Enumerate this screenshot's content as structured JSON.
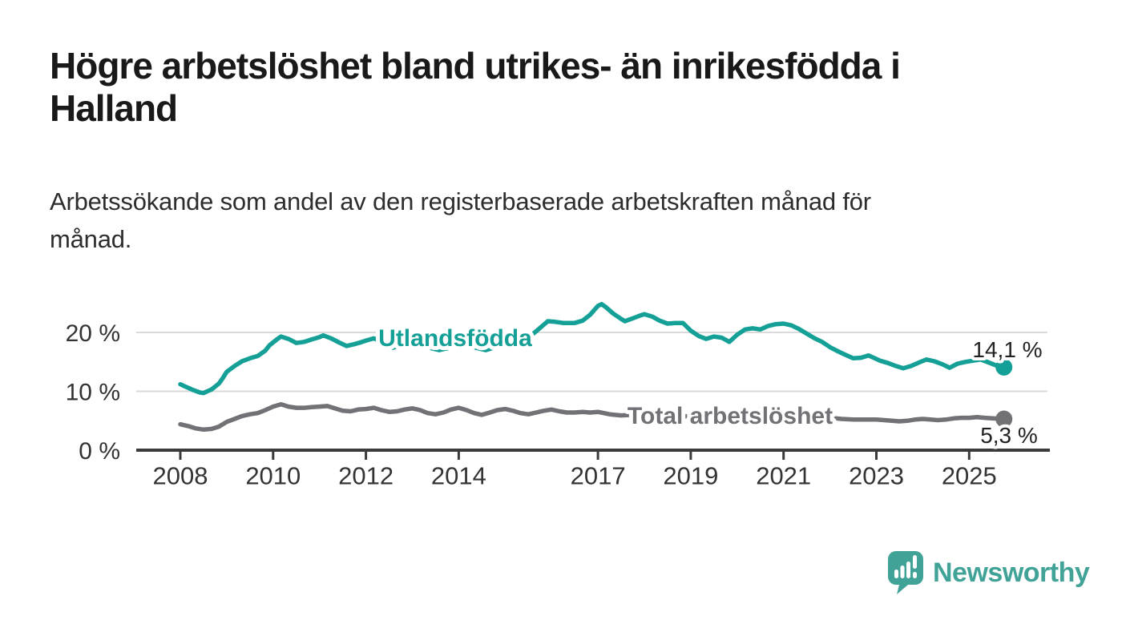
{
  "header": {
    "title": "Högre arbetslöshet bland utrikes- än inrikesfödda i\nHalland",
    "subtitle": "Arbetssökande som andel av den registerbaserade arbetskraften månad för\nmånad."
  },
  "colors": {
    "accent_teal": "#14a096",
    "series_total_gray": "#717176",
    "grid": "#dadada",
    "axis": "#3b3b3b",
    "tick_text": "#333333",
    "title_text": "#191919",
    "value_text": "#222222",
    "logo": "#41a397"
  },
  "chart_data": {
    "type": "line",
    "title": "Högre arbetslöshet bland utrikes- än inrikesfödda i Halland",
    "subtitle": "Arbetssökande som andel av den registerbaserade arbetskraften månad för månad.",
    "xlabel": "",
    "ylabel": "",
    "grid": "horizontal-only",
    "legend_position": "inline-on-lines",
    "x_axis": {
      "range": [
        2007.9,
        2026.7
      ],
      "ticks": [
        {
          "v": 2008,
          "label": "2008"
        },
        {
          "v": 2010,
          "label": "2010"
        },
        {
          "v": 2012,
          "label": "2012"
        },
        {
          "v": 2014,
          "label": "2014"
        },
        {
          "v": 2017,
          "label": "2017"
        },
        {
          "v": 2019,
          "label": "2019"
        },
        {
          "v": 2021,
          "label": "2021"
        },
        {
          "v": 2023,
          "label": "2023"
        },
        {
          "v": 2025,
          "label": "2025"
        }
      ]
    },
    "y_axis": {
      "range": [
        0,
        26
      ],
      "unit": "%",
      "ticks": [
        {
          "v": 20,
          "label": "20 %"
        },
        {
          "v": 10,
          "label": "10 %"
        },
        {
          "v": 0,
          "label": "0 %"
        }
      ],
      "gridlines": [
        20,
        10
      ]
    },
    "series": [
      {
        "name": "Utlandsfödda",
        "color": "#14a096",
        "end_value": 14.1,
        "end_label": "14,1 %",
        "points": [
          [
            2008.0,
            11.2
          ],
          [
            2008.08,
            10.9
          ],
          [
            2008.17,
            10.6
          ],
          [
            2008.25,
            10.3
          ],
          [
            2008.42,
            9.8
          ],
          [
            2008.5,
            9.7
          ],
          [
            2008.58,
            10.0
          ],
          [
            2008.67,
            10.3
          ],
          [
            2008.83,
            11.3
          ],
          [
            2008.92,
            12.3
          ],
          [
            2009.0,
            13.3
          ],
          [
            2009.17,
            14.3
          ],
          [
            2009.33,
            15.1
          ],
          [
            2009.5,
            15.6
          ],
          [
            2009.67,
            16.0
          ],
          [
            2009.83,
            16.9
          ],
          [
            2009.92,
            17.8
          ],
          [
            2010.08,
            18.8
          ],
          [
            2010.17,
            19.3
          ],
          [
            2010.33,
            18.9
          ],
          [
            2010.5,
            18.2
          ],
          [
            2010.67,
            18.4
          ],
          [
            2010.83,
            18.8
          ],
          [
            2011.0,
            19.2
          ],
          [
            2011.08,
            19.5
          ],
          [
            2011.25,
            19.0
          ],
          [
            2011.42,
            18.3
          ],
          [
            2011.58,
            17.7
          ],
          [
            2011.75,
            18.0
          ],
          [
            2011.92,
            18.4
          ],
          [
            2012.0,
            18.6
          ],
          [
            2012.17,
            19.0
          ],
          [
            2012.33,
            18.5
          ],
          [
            2012.5,
            17.8
          ],
          [
            2012.58,
            17.4
          ],
          [
            2012.75,
            17.8
          ],
          [
            2012.92,
            18.2
          ],
          [
            2013.08,
            18.0
          ],
          [
            2013.25,
            17.6
          ],
          [
            2013.42,
            17.3
          ],
          [
            2013.58,
            17.0
          ],
          [
            2013.75,
            17.3
          ],
          [
            2013.92,
            17.7
          ],
          [
            2014.08,
            17.9
          ],
          [
            2014.25,
            17.6
          ],
          [
            2014.42,
            17.3
          ],
          [
            2014.58,
            17.0
          ],
          [
            2014.75,
            17.4
          ],
          [
            2014.92,
            17.8
          ],
          [
            2015.0,
            18.0
          ],
          [
            2015.17,
            18.4
          ],
          [
            2015.33,
            18.7
          ],
          [
            2015.5,
            19.1
          ],
          [
            2015.67,
            20.2
          ],
          [
            2015.83,
            21.3
          ],
          [
            2015.92,
            21.9
          ],
          [
            2016.08,
            21.8
          ],
          [
            2016.25,
            21.6
          ],
          [
            2016.5,
            21.6
          ],
          [
            2016.67,
            22.0
          ],
          [
            2016.83,
            23.0
          ],
          [
            2016.92,
            23.8
          ],
          [
            2017.0,
            24.5
          ],
          [
            2017.08,
            24.8
          ],
          [
            2017.17,
            24.3
          ],
          [
            2017.33,
            23.2
          ],
          [
            2017.5,
            22.3
          ],
          [
            2017.58,
            21.9
          ],
          [
            2017.75,
            22.4
          ],
          [
            2017.92,
            22.9
          ],
          [
            2018.0,
            23.1
          ],
          [
            2018.17,
            22.7
          ],
          [
            2018.33,
            22.0
          ],
          [
            2018.5,
            21.5
          ],
          [
            2018.67,
            21.6
          ],
          [
            2018.83,
            21.6
          ],
          [
            2019.0,
            20.3
          ],
          [
            2019.17,
            19.4
          ],
          [
            2019.33,
            18.9
          ],
          [
            2019.5,
            19.3
          ],
          [
            2019.67,
            19.1
          ],
          [
            2019.83,
            18.4
          ],
          [
            2020.0,
            19.6
          ],
          [
            2020.17,
            20.5
          ],
          [
            2020.33,
            20.7
          ],
          [
            2020.5,
            20.5
          ],
          [
            2020.67,
            21.1
          ],
          [
            2020.83,
            21.4
          ],
          [
            2021.0,
            21.5
          ],
          [
            2021.17,
            21.2
          ],
          [
            2021.33,
            20.6
          ],
          [
            2021.5,
            19.8
          ],
          [
            2021.67,
            19.0
          ],
          [
            2021.83,
            18.4
          ],
          [
            2022.0,
            17.5
          ],
          [
            2022.17,
            16.8
          ],
          [
            2022.33,
            16.2
          ],
          [
            2022.5,
            15.6
          ],
          [
            2022.67,
            15.7
          ],
          [
            2022.83,
            16.1
          ],
          [
            2023.0,
            15.5
          ],
          [
            2023.08,
            15.2
          ],
          [
            2023.25,
            14.8
          ],
          [
            2023.42,
            14.3
          ],
          [
            2023.58,
            13.9
          ],
          [
            2023.75,
            14.3
          ],
          [
            2023.92,
            14.9
          ],
          [
            2024.08,
            15.4
          ],
          [
            2024.25,
            15.1
          ],
          [
            2024.42,
            14.6
          ],
          [
            2024.58,
            14.0
          ],
          [
            2024.75,
            14.7
          ],
          [
            2024.92,
            15.0
          ],
          [
            2025.08,
            15.2
          ],
          [
            2025.25,
            15.4
          ],
          [
            2025.42,
            14.9
          ],
          [
            2025.58,
            14.4
          ],
          [
            2025.75,
            14.1
          ]
        ]
      },
      {
        "name": "Total arbetslöshet",
        "color": "#717176",
        "end_value": 5.3,
        "end_label": "5,3 %",
        "points": [
          [
            2008.0,
            4.4
          ],
          [
            2008.17,
            4.1
          ],
          [
            2008.33,
            3.7
          ],
          [
            2008.5,
            3.5
          ],
          [
            2008.67,
            3.6
          ],
          [
            2008.83,
            4.0
          ],
          [
            2009.0,
            4.8
          ],
          [
            2009.17,
            5.3
          ],
          [
            2009.33,
            5.8
          ],
          [
            2009.5,
            6.1
          ],
          [
            2009.67,
            6.3
          ],
          [
            2009.83,
            6.8
          ],
          [
            2010.0,
            7.4
          ],
          [
            2010.17,
            7.8
          ],
          [
            2010.33,
            7.4
          ],
          [
            2010.5,
            7.2
          ],
          [
            2010.67,
            7.2
          ],
          [
            2010.83,
            7.3
          ],
          [
            2011.0,
            7.4
          ],
          [
            2011.17,
            7.5
          ],
          [
            2011.33,
            7.1
          ],
          [
            2011.5,
            6.7
          ],
          [
            2011.67,
            6.6
          ],
          [
            2011.83,
            6.9
          ],
          [
            2012.0,
            7.0
          ],
          [
            2012.17,
            7.2
          ],
          [
            2012.33,
            6.8
          ],
          [
            2012.5,
            6.5
          ],
          [
            2012.67,
            6.6
          ],
          [
            2012.83,
            6.9
          ],
          [
            2013.0,
            7.1
          ],
          [
            2013.17,
            6.8
          ],
          [
            2013.33,
            6.3
          ],
          [
            2013.5,
            6.1
          ],
          [
            2013.67,
            6.4
          ],
          [
            2013.83,
            6.9
          ],
          [
            2014.0,
            7.2
          ],
          [
            2014.17,
            6.8
          ],
          [
            2014.33,
            6.3
          ],
          [
            2014.5,
            6.0
          ],
          [
            2014.67,
            6.4
          ],
          [
            2014.83,
            6.8
          ],
          [
            2015.0,
            7.0
          ],
          [
            2015.17,
            6.7
          ],
          [
            2015.33,
            6.3
          ],
          [
            2015.5,
            6.1
          ],
          [
            2015.67,
            6.4
          ],
          [
            2015.83,
            6.7
          ],
          [
            2016.0,
            6.9
          ],
          [
            2016.17,
            6.6
          ],
          [
            2016.33,
            6.4
          ],
          [
            2016.5,
            6.4
          ],
          [
            2016.67,
            6.5
          ],
          [
            2016.83,
            6.4
          ],
          [
            2017.0,
            6.5
          ],
          [
            2017.25,
            6.1
          ],
          [
            2017.5,
            5.9
          ],
          [
            2017.75,
            6.0
          ],
          [
            2018.0,
            6.1
          ],
          [
            2018.25,
            5.9
          ],
          [
            2018.5,
            5.7
          ],
          [
            2018.75,
            5.7
          ],
          [
            2019.0,
            5.8
          ],
          [
            2019.25,
            5.5
          ],
          [
            2019.5,
            5.4
          ],
          [
            2019.75,
            5.5
          ],
          [
            2020.0,
            5.9
          ],
          [
            2020.25,
            6.6
          ],
          [
            2020.5,
            6.9
          ],
          [
            2020.75,
            6.7
          ],
          [
            2021.0,
            6.5
          ],
          [
            2021.25,
            6.2
          ],
          [
            2021.5,
            5.9
          ],
          [
            2021.75,
            5.7
          ],
          [
            2022.0,
            5.5
          ],
          [
            2022.25,
            5.3
          ],
          [
            2022.5,
            5.2
          ],
          [
            2022.75,
            5.2
          ],
          [
            2023.0,
            5.2
          ],
          [
            2023.17,
            5.1
          ],
          [
            2023.33,
            5.0
          ],
          [
            2023.5,
            4.9
          ],
          [
            2023.67,
            5.0
          ],
          [
            2023.83,
            5.2
          ],
          [
            2024.0,
            5.3
          ],
          [
            2024.17,
            5.2
          ],
          [
            2024.33,
            5.1
          ],
          [
            2024.5,
            5.2
          ],
          [
            2024.67,
            5.4
          ],
          [
            2024.83,
            5.5
          ],
          [
            2025.0,
            5.5
          ],
          [
            2025.17,
            5.6
          ],
          [
            2025.33,
            5.5
          ],
          [
            2025.5,
            5.4
          ],
          [
            2025.75,
            5.3
          ]
        ]
      }
    ]
  },
  "footer": {
    "brand": "Newsworthy"
  }
}
